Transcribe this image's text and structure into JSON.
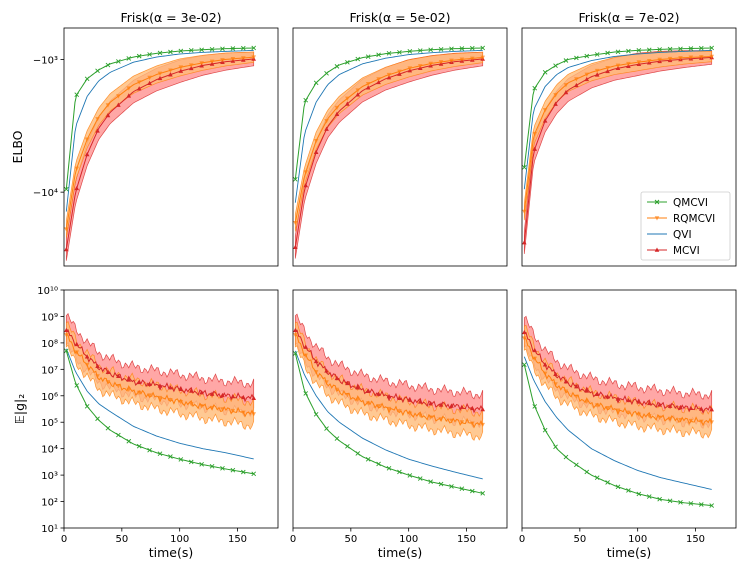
{
  "colors": {
    "QMCVI": "#2ca02c",
    "RQMCVI": "#ff7f0e",
    "RQMCVI_band": "#ffbb78",
    "QVI": "#1f77b4",
    "MCVI": "#d62728",
    "MCVI_band": "#ff9896"
  },
  "legend": {
    "placement": "bottom-right of top-right panel",
    "entries": [
      {
        "name": "QMCVI",
        "marker": "x",
        "color": "#2ca02c"
      },
      {
        "name": "RQMCVI",
        "marker": "triangle-down",
        "color": "#ff7f0e"
      },
      {
        "name": "QVI",
        "marker": "none",
        "color": "#1f77b4"
      },
      {
        "name": "MCVI",
        "marker": "triangle-up",
        "color": "#d62728"
      }
    ]
  },
  "y_labels": {
    "elbo": "ELBO",
    "grad": "𝔼|g|₂"
  },
  "x_label": "time(s)",
  "x_ticks": [
    "0",
    "50",
    "100",
    "150"
  ],
  "elbo_ticks": [
    "−10³",
    "−10⁴"
  ],
  "grad_ticks": [
    "10¹",
    "10²",
    "10³",
    "10⁴",
    "10⁵",
    "10⁶",
    "10⁷",
    "10⁸",
    "10⁹",
    "10¹⁰"
  ],
  "chart_data": [
    {
      "type": "line",
      "metric": "ELBO",
      "title": "Frisk(α = 3e-02)",
      "xlabel": "",
      "ylabel": "ELBO",
      "xlim": [
        0,
        185
      ],
      "yscale": "symlog (negative)",
      "ylim": [
        -36000,
        -580
      ],
      "x": [
        2,
        10,
        20,
        30,
        40,
        60,
        80,
        100,
        120,
        140,
        165
      ],
      "series": [
        {
          "name": "QMCVI",
          "values": [
            -9500,
            -1900,
            -1400,
            -1200,
            -1080,
            -960,
            -900,
            -865,
            -845,
            -830,
            -820
          ]
        },
        {
          "name": "QVI",
          "values": [
            -14000,
            -3200,
            -1900,
            -1450,
            -1250,
            -1050,
            -960,
            -910,
            -885,
            -870,
            -855
          ]
        },
        {
          "name": "RQMCVI",
          "values": [
            -19000,
            -7000,
            -4000,
            -2700,
            -2100,
            -1550,
            -1300,
            -1150,
            -1060,
            -1000,
            -960
          ]
        },
        {
          "name": "MCVI",
          "values": [
            -27000,
            -10000,
            -5200,
            -3300,
            -2500,
            -1750,
            -1420,
            -1230,
            -1110,
            -1040,
            -990
          ]
        }
      ]
    },
    {
      "type": "line",
      "metric": "ELBO",
      "title": "Frisk(α = 5e-02)",
      "xlabel": "",
      "ylabel": "",
      "xlim": [
        0,
        185
      ],
      "yscale": "symlog (negative)",
      "ylim": [
        -36000,
        -580
      ],
      "x": [
        2,
        10,
        20,
        30,
        40,
        60,
        80,
        100,
        120,
        140,
        165
      ],
      "series": [
        {
          "name": "QMCVI",
          "values": [
            -8000,
            -2100,
            -1500,
            -1250,
            -1100,
            -970,
            -905,
            -870,
            -845,
            -830,
            -820
          ]
        },
        {
          "name": "QVI",
          "values": [
            -12000,
            -3600,
            -2100,
            -1550,
            -1300,
            -1080,
            -980,
            -920,
            -890,
            -870,
            -855
          ]
        },
        {
          "name": "RQMCVI",
          "values": [
            -17000,
            -7500,
            -4100,
            -2800,
            -2200,
            -1600,
            -1330,
            -1170,
            -1070,
            -1010,
            -965
          ]
        },
        {
          "name": "MCVI",
          "values": [
            -26000,
            -9500,
            -5000,
            -3200,
            -2450,
            -1720,
            -1400,
            -1220,
            -1110,
            -1040,
            -990
          ]
        }
      ]
    },
    {
      "type": "line",
      "metric": "ELBO",
      "title": "Frisk(α = 7e-02)",
      "xlabel": "",
      "ylabel": "",
      "xlim": [
        0,
        185
      ],
      "yscale": "symlog (negative)",
      "ylim": [
        -36000,
        -580
      ],
      "x": [
        2,
        10,
        20,
        30,
        40,
        60,
        80,
        100,
        120,
        140,
        165
      ],
      "series": [
        {
          "name": "QMCVI",
          "values": [
            -6500,
            -1700,
            -1250,
            -1100,
            -1000,
            -930,
            -880,
            -855,
            -840,
            -830,
            -820
          ]
        },
        {
          "name": "QVI",
          "values": [
            -9500,
            -2400,
            -1600,
            -1300,
            -1150,
            -1020,
            -950,
            -910,
            -885,
            -870,
            -855
          ]
        },
        {
          "name": "RQMCVI",
          "values": [
            -14000,
            -3800,
            -2400,
            -1800,
            -1500,
            -1250,
            -1120,
            -1050,
            -1000,
            -970,
            -950
          ]
        },
        {
          "name": "MCVI",
          "values": [
            -24000,
            -5000,
            -2900,
            -2100,
            -1700,
            -1350,
            -1180,
            -1090,
            -1030,
            -995,
            -965
          ]
        }
      ]
    },
    {
      "type": "line",
      "metric": "gradient norm",
      "title": "",
      "xlabel": "time(s)",
      "ylabel": "𝔼|g|₂",
      "xlim": [
        0,
        185
      ],
      "yscale": "log",
      "ylim": [
        10,
        10000000000.0
      ],
      "x": [
        2,
        10,
        20,
        30,
        40,
        60,
        80,
        100,
        120,
        140,
        165
      ],
      "series": [
        {
          "name": "QMCVI",
          "values": [
            50000000.0,
            3000000.0,
            400000.0,
            120000.0,
            50000.0,
            15000.0,
            7000.0,
            4000.0,
            2500.0,
            1700.0,
            1100.0
          ]
        },
        {
          "name": "QVI",
          "values": [
            60000000.0,
            8000000.0,
            1500000.0,
            500000.0,
            250000.0,
            70000.0,
            30000.0,
            16000.0,
            10000.0,
            7000.0,
            4000.0
          ]
        },
        {
          "name": "RQMCVI",
          "values": [
            200000000.0,
            50000000.0,
            15000000.0,
            5000000.0,
            3000000.0,
            1500000.0,
            900000.0,
            600000.0,
            400000.0,
            300000.0,
            200000.0
          ]
        },
        {
          "name": "MCVI",
          "values": [
            300000000.0,
            100000000.0,
            30000000.0,
            12000000.0,
            7000000.0,
            3500000.0,
            2500000.0,
            1800000.0,
            1300000.0,
            1000000.0,
            800000.0
          ]
        }
      ]
    },
    {
      "type": "line",
      "metric": "gradient norm",
      "title": "",
      "xlabel": "time(s)",
      "ylabel": "",
      "xlim": [
        0,
        185
      ],
      "yscale": "log",
      "ylim": [
        10,
        10000000000.0
      ],
      "x": [
        2,
        10,
        20,
        30,
        40,
        60,
        80,
        100,
        120,
        140,
        165
      ],
      "series": [
        {
          "name": "QMCVI",
          "values": [
            40000000.0,
            1500000.0,
            200000.0,
            50000.0,
            20000.0,
            5000.0,
            2000.0,
            1000.0,
            550.0,
            350.0,
            200.0
          ]
        },
        {
          "name": "QVI",
          "values": [
            50000000.0,
            6000000.0,
            1000000.0,
            250000.0,
            100000.0,
            25000.0,
            9000.0,
            4000.0,
            2200.0,
            1300.0,
            700.0
          ]
        },
        {
          "name": "RQMCVI",
          "values": [
            200000000.0,
            40000000.0,
            8000000.0,
            3000000.0,
            1500000.0,
            600000.0,
            350000.0,
            220000.0,
            150000.0,
            110000.0,
            80000.0
          ]
        },
        {
          "name": "MCVI",
          "values": [
            300000000.0,
            80000000.0,
            20000000.0,
            8000000.0,
            4000000.0,
            1700000.0,
            1000000.0,
            700000.0,
            500000.0,
            400000.0,
            300000.0
          ]
        }
      ]
    },
    {
      "type": "line",
      "metric": "gradient norm",
      "title": "",
      "xlabel": "time(s)",
      "ylabel": "",
      "xlim": [
        0,
        185
      ],
      "yscale": "log",
      "ylim": [
        10,
        10000000000.0
      ],
      "x": [
        2,
        10,
        20,
        30,
        40,
        60,
        80,
        100,
        120,
        140,
        165
      ],
      "series": [
        {
          "name": "QMCVI",
          "values": [
            15000000.0,
            500000.0,
            50000.0,
            10000.0,
            4000.0,
            1000.0,
            400.0,
            200.0,
            120.0,
            90,
            70
          ]
        },
        {
          "name": "QVI",
          "values": [
            30000000.0,
            4000000.0,
            600000.0,
            150000.0,
            50000.0,
            10000.0,
            3500.0,
            1500.0,
            800.0,
            500.0,
            280.0
          ]
        },
        {
          "name": "RQMCVI",
          "values": [
            150000000.0,
            30000000.0,
            7000000.0,
            2500000.0,
            1300000.0,
            500000.0,
            300000.0,
            200000.0,
            150000.0,
            120000.0,
            100000.0
          ]
        },
        {
          "name": "MCVI",
          "values": [
            250000000.0,
            60000000.0,
            15000000.0,
            6000000.0,
            3000000.0,
            1300000.0,
            800000.0,
            600000.0,
            450000.0,
            350000.0,
            300000.0
          ]
        }
      ]
    }
  ]
}
